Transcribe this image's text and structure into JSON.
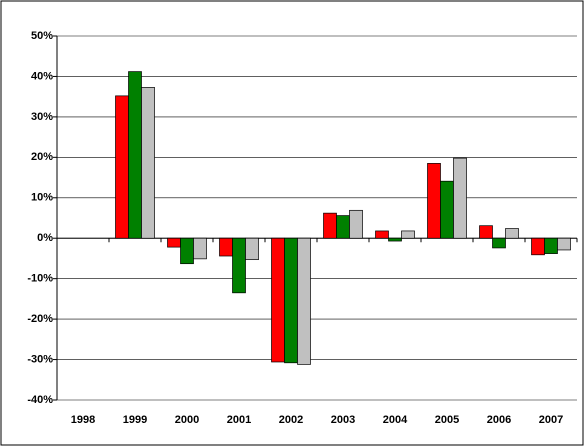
{
  "chart_data": {
    "type": "bar",
    "categories": [
      "1998",
      "1999",
      "2000",
      "2001",
      "2002",
      "2003",
      "2004",
      "2005",
      "2006",
      "2007"
    ],
    "series": [
      {
        "color": "#ff0000",
        "values": [
          null,
          35.2,
          -2.2,
          -4.4,
          -30.6,
          6.2,
          1.8,
          18.5,
          3.1,
          -4.1
        ]
      },
      {
        "color": "#008000",
        "values": [
          null,
          41.2,
          -6.3,
          -13.5,
          -30.8,
          5.6,
          -0.7,
          14.1,
          -2.4,
          -3.8
        ]
      },
      {
        "color": "#c0c0c0",
        "values": [
          null,
          37.3,
          -5.1,
          -5.3,
          -31.2,
          6.9,
          1.8,
          19.8,
          2.4,
          -2.9
        ]
      }
    ],
    "ylim": [
      -40,
      50
    ],
    "yticks": [
      {
        "value": -40,
        "label": "-40%"
      },
      {
        "value": -30,
        "label": "-30%"
      },
      {
        "value": -20,
        "label": "-20%"
      },
      {
        "value": -10,
        "label": "-10%"
      },
      {
        "value": 0,
        "label": "0%"
      },
      {
        "value": 10,
        "label": "10%"
      },
      {
        "value": 20,
        "label": "20%"
      },
      {
        "value": 30,
        "label": "30%"
      },
      {
        "value": 40,
        "label": "40%"
      },
      {
        "value": 50,
        "label": "50%"
      }
    ],
    "grid": true
  }
}
